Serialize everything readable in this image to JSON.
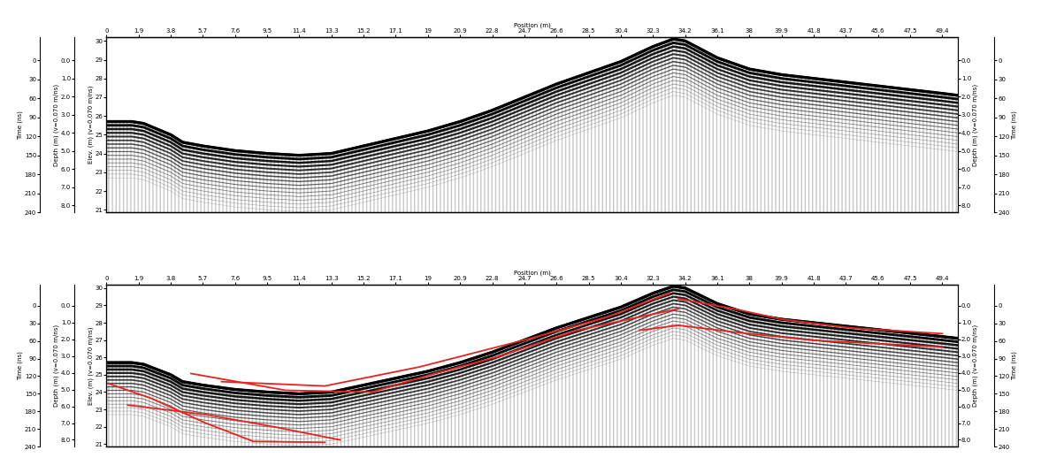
{
  "chart_data": [
    {
      "type": "line",
      "xlabel": "Position (m)",
      "xlim": [
        0,
        50.3
      ],
      "xticks": [
        0,
        1.9,
        3.8,
        5.7,
        7.6,
        9.5,
        11.4,
        13.3,
        15.2,
        17.1,
        19,
        20.9,
        22.8,
        24.7,
        26.6,
        28.5,
        30.4,
        32.3,
        34.2,
        36.1,
        38,
        39.9,
        41.8,
        43.7,
        45.6,
        47.5,
        49.4
      ],
      "ylabel": "Elev. (m) (v=0.070 m/ns)",
      "ylim": [
        20.86,
        30.19
      ],
      "yticks": [
        21,
        22,
        23,
        24,
        25,
        26,
        27,
        28,
        29,
        30
      ],
      "time_label": "Time (ns)",
      "time_lim": [
        240,
        -36
      ],
      "time_ticks": [
        0,
        30,
        60,
        90,
        120,
        150,
        180,
        210,
        240
      ],
      "depth_label": "Depth (m) (v=0.070 m/ns)",
      "depth_lim": [
        8.4,
        -1.26
      ],
      "depth_ticks": [
        {
          "value": 0,
          "label": "0.0"
        },
        {
          "value": 1,
          "label": "1.0"
        },
        {
          "value": 2,
          "label": "2.0"
        },
        {
          "value": 3,
          "label": "3.0"
        },
        {
          "value": 4,
          "label": "4.0"
        },
        {
          "value": 5,
          "label": "5.0"
        },
        {
          "value": 6,
          "label": "6.0"
        },
        {
          "value": 7,
          "label": "7.0"
        },
        {
          "value": 8,
          "label": "8.0"
        }
      ],
      "surface": {
        "color": "#000000",
        "x": [
          0,
          1.5,
          2.2,
          3.8,
          4.5,
          5.7,
          7.6,
          9.5,
          11.4,
          13.3,
          15.2,
          17.1,
          19,
          20.9,
          22.8,
          24.7,
          26.6,
          28.5,
          30.4,
          32.3,
          33.5,
          34.2,
          36.1,
          38,
          39.9,
          41.8,
          43.7,
          45.6,
          47.5,
          49.4,
          50.3
        ],
        "values": [
          25.7,
          25.7,
          25.6,
          25.0,
          24.6,
          24.4,
          24.15,
          24.0,
          23.9,
          24.0,
          24.4,
          24.8,
          25.2,
          25.7,
          26.3,
          27.0,
          27.7,
          28.3,
          28.9,
          29.7,
          30.1,
          30.0,
          29.1,
          28.5,
          28.2,
          28.0,
          27.8,
          27.6,
          27.4,
          27.2,
          27.1
        ]
      },
      "reflectors": []
    },
    {
      "type": "line",
      "xlabel": "Position (m)",
      "xlim": [
        0,
        50.3
      ],
      "xticks": [
        0,
        1.9,
        3.8,
        5.7,
        7.6,
        9.5,
        11.4,
        13.3,
        15.2,
        17.1,
        19,
        20.9,
        22.8,
        24.7,
        26.6,
        28.5,
        30.4,
        32.3,
        34.2,
        36.1,
        38,
        39.9,
        41.8,
        43.7,
        45.6,
        47.5,
        49.4
      ],
      "ylabel": "Elev. (m) (v=0.070 m/ns)",
      "ylim": [
        20.86,
        30.19
      ],
      "yticks": [
        21,
        22,
        23,
        24,
        25,
        26,
        27,
        28,
        29,
        30
      ],
      "time_label": "Time (ns)",
      "time_lim": [
        240,
        -36
      ],
      "time_ticks": [
        0,
        30,
        60,
        90,
        120,
        150,
        180,
        210,
        240
      ],
      "depth_label": "Depth (m) (v=0.070 m/ns)",
      "depth_lim": [
        8.4,
        -1.26
      ],
      "depth_ticks": [
        {
          "value": 0,
          "label": "0.0"
        },
        {
          "value": 1,
          "label": "1.0"
        },
        {
          "value": 2,
          "label": "2.0"
        },
        {
          "value": 3,
          "label": "3.0"
        },
        {
          "value": 4,
          "label": "4.0"
        },
        {
          "value": 5,
          "label": "5.0"
        },
        {
          "value": 6,
          "label": "6.0"
        },
        {
          "value": 7,
          "label": "7.0"
        },
        {
          "value": 8,
          "label": "8.0"
        }
      ],
      "surface": {
        "color": "#000000",
        "x": [
          0,
          1.5,
          2.2,
          3.8,
          4.5,
          5.7,
          7.6,
          9.5,
          11.4,
          13.3,
          15.2,
          17.1,
          19,
          20.9,
          22.8,
          24.7,
          26.6,
          28.5,
          30.4,
          32.3,
          33.5,
          34.2,
          36.1,
          38,
          39.9,
          41.8,
          43.7,
          45.6,
          47.5,
          49.4,
          50.3
        ],
        "values": [
          25.7,
          25.7,
          25.6,
          25.0,
          24.6,
          24.4,
          24.15,
          24.0,
          23.9,
          24.0,
          24.4,
          24.8,
          25.2,
          25.7,
          26.3,
          27.0,
          27.7,
          28.3,
          28.9,
          29.7,
          30.1,
          30.0,
          29.1,
          28.5,
          28.2,
          28.0,
          27.8,
          27.6,
          27.4,
          27.2,
          27.1
        ]
      },
      "reflector_color": "#e8231f",
      "reflectors": [
        {
          "x": [
            0.1,
            2.65,
            5.9,
            8.7,
            12.9
          ],
          "values": [
            24.5,
            23.64,
            22.2,
            21.15,
            21.1
          ]
        },
        {
          "x": [
            1.26,
            5.9,
            10.1,
            13.8
          ],
          "values": [
            23.25,
            22.7,
            21.96,
            21.24
          ]
        },
        {
          "x": [
            5.0,
            10.6,
            15.7,
            19.4,
            23.1,
            27.8,
            31.5,
            33.8
          ],
          "values": [
            25.07,
            24.1,
            24.0,
            25.07,
            26.03,
            27.56,
            28.33,
            28.8
          ]
        },
        {
          "x": [
            6.8,
            12.9,
            18.5,
            25.0,
            29.6,
            32.4,
            33.3
          ],
          "values": [
            24.6,
            24.35,
            25.45,
            27.08,
            28.33,
            29.38,
            29.7
          ]
        },
        {
          "x": [
            33.8,
            37.1,
            39.9,
            44.0,
            49.4
          ],
          "values": [
            29.38,
            28.8,
            28.2,
            27.7,
            27.37
          ]
        },
        {
          "x": [
            31.5,
            33.8,
            37.1,
            41.7,
            46.4,
            49.4
          ],
          "values": [
            27.56,
            27.85,
            27.46,
            26.99,
            26.75,
            26.6
          ]
        }
      ]
    }
  ]
}
